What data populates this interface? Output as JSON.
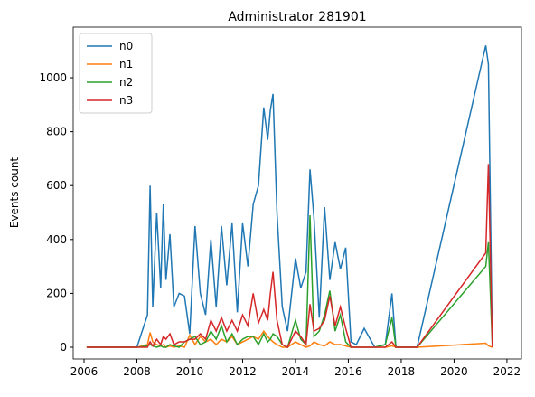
{
  "chart_data": {
    "type": "line",
    "title": "Administrator 281901",
    "y_label": "Events count",
    "x": [
      2006.1,
      2007,
      2008,
      2008.4,
      2008.5,
      2008.6,
      2008.75,
      2008.9,
      2009.0,
      2009.1,
      2009.25,
      2009.4,
      2009.6,
      2009.8,
      2010.0,
      2010.2,
      2010.4,
      2010.6,
      2010.8,
      2011.0,
      2011.2,
      2011.4,
      2011.6,
      2011.8,
      2012.0,
      2012.2,
      2012.4,
      2012.6,
      2012.8,
      2012.95,
      2013.05,
      2013.15,
      2013.3,
      2013.5,
      2013.7,
      2014.0,
      2014.2,
      2014.4,
      2014.55,
      2014.7,
      2014.9,
      2015.1,
      2015.3,
      2015.5,
      2015.7,
      2015.9,
      2016.1,
      2016.3,
      2016.6,
      2017.0,
      2017.4,
      2017.65,
      2017.8,
      2018.6,
      2021.2,
      2021.3,
      2021.45
    ],
    "series": [
      {
        "name": "n0",
        "color": "#1f77b4",
        "values": [
          0,
          0,
          0,
          120,
          600,
          150,
          500,
          220,
          530,
          250,
          420,
          150,
          200,
          190,
          50,
          450,
          200,
          120,
          400,
          150,
          450,
          230,
          460,
          130,
          460,
          300,
          530,
          600,
          890,
          770,
          880,
          940,
          500,
          150,
          60,
          330,
          220,
          280,
          660,
          480,
          110,
          520,
          250,
          390,
          290,
          370,
          20,
          10,
          70,
          0,
          10,
          200,
          0,
          0,
          1120,
          1050,
          0
        ]
      },
      {
        "name": "n1",
        "color": "#ff7f0e",
        "values": [
          0,
          0,
          0,
          10,
          55,
          20,
          10,
          5,
          10,
          0,
          5,
          0,
          5,
          0,
          45,
          10,
          40,
          20,
          30,
          10,
          30,
          20,
          40,
          10,
          20,
          30,
          40,
          30,
          60,
          40,
          30,
          20,
          10,
          0,
          0,
          20,
          10,
          0,
          5,
          20,
          10,
          5,
          20,
          10,
          10,
          5,
          0,
          0,
          0,
          0,
          0,
          5,
          0,
          0,
          15,
          5,
          0
        ]
      },
      {
        "name": "n2",
        "color": "#2ca02c",
        "values": [
          0,
          0,
          0,
          5,
          10,
          5,
          0,
          5,
          0,
          0,
          10,
          5,
          0,
          20,
          30,
          40,
          10,
          20,
          60,
          30,
          80,
          20,
          50,
          10,
          30,
          40,
          40,
          10,
          50,
          20,
          30,
          50,
          40,
          10,
          0,
          100,
          30,
          10,
          490,
          40,
          60,
          120,
          210,
          60,
          120,
          20,
          0,
          0,
          0,
          0,
          10,
          110,
          0,
          0,
          300,
          390,
          0
        ]
      },
      {
        "name": "n3",
        "color": "#d62728",
        "values": [
          0,
          0,
          0,
          0,
          20,
          5,
          30,
          10,
          40,
          30,
          50,
          10,
          20,
          20,
          30,
          30,
          50,
          30,
          100,
          60,
          110,
          60,
          100,
          60,
          120,
          80,
          200,
          90,
          140,
          100,
          200,
          280,
          100,
          10,
          0,
          60,
          40,
          10,
          160,
          60,
          70,
          100,
          190,
          80,
          150,
          70,
          0,
          0,
          0,
          0,
          0,
          20,
          0,
          0,
          350,
          680,
          0
        ]
      }
    ],
    "xlim": [
      2005.59,
      2022.55
    ],
    "xticks": [
      2006,
      2008,
      2010,
      2012,
      2014,
      2016,
      2018,
      2020,
      2022
    ],
    "ylim": [
      -43.6,
      1188
    ],
    "yticks": [
      0,
      200,
      400,
      600,
      800,
      1000
    ],
    "legend": "upper left"
  }
}
